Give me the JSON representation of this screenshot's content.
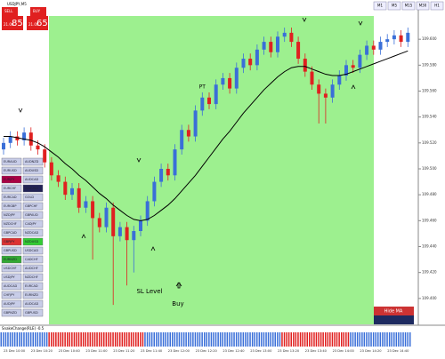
{
  "window_title": "USDJPY,M5",
  "trade_panel": {
    "sell": "SELL",
    "buy": "BUY",
    "sell_small": "21.00",
    "sell_big": "85",
    "buy_small": "21.00",
    "buy_big": "65"
  },
  "timeframes": [
    "M1",
    "M5",
    "M15",
    "M30",
    "H1"
  ],
  "symbols_left": [
    "EURAUD",
    "EURUSD",
    "EURJPY",
    "EURCHF",
    "EURCAD",
    "EURGBP",
    "NZDJPY",
    "NZDCHF",
    "GBPCAD",
    "GBPJPY",
    "GBPUSD",
    "EURNZD",
    "USDCHF",
    "USDJPY",
    "AUDCAD",
    "CHFJPY",
    "AUDJPY",
    "GBPNZD"
  ],
  "symbols_right": [
    "AUDNZD",
    "AUDUSD",
    "AUDCAD",
    "XAUUSD",
    "GOLD",
    "GBPCHF",
    "GBPAUD",
    "CADJPY",
    "NZDCAD",
    "NZDUSD",
    "USDCAD",
    "CADCHF",
    "AUDCHF",
    "NZDCHF",
    "EURCAD",
    "EURNZD",
    "AUDCAD",
    "GBPUSD"
  ],
  "info_panel": {
    "button": "Hide MA"
  },
  "chart_data": {
    "type": "candlestick",
    "up_color": "#3a6fd8",
    "down_color": "#e02020",
    "ma_color": "#000000",
    "annotations": {
      "pt": "PT",
      "sl": "SL Level",
      "buy": "Buy"
    },
    "open": [
      109.515,
      109.52,
      109.525,
      109.522,
      109.528,
      109.518,
      109.515,
      109.505,
      109.495,
      109.49,
      109.48,
      109.485,
      109.47,
      109.475,
      109.462,
      109.455,
      109.47,
      109.448,
      109.455,
      109.445,
      109.452,
      109.46,
      109.475,
      109.49,
      109.5,
      109.495,
      109.515,
      109.53,
      109.525,
      109.545,
      109.555,
      109.55,
      109.565,
      109.57,
      109.562,
      109.578,
      109.585,
      109.58,
      109.592,
      109.598,
      109.59,
      109.602,
      109.605,
      109.598,
      109.585,
      109.575,
      109.565,
      109.558,
      109.555,
      109.565,
      109.572,
      109.58,
      109.578,
      109.588,
      109.595,
      109.592,
      109.598,
      109.6,
      109.603,
      109.598
    ],
    "high": [
      109.524,
      109.529,
      109.529,
      109.532,
      109.532,
      109.522,
      109.519,
      109.509,
      109.499,
      109.494,
      109.489,
      109.489,
      109.479,
      109.479,
      109.466,
      109.474,
      109.474,
      109.459,
      109.459,
      109.456,
      109.464,
      109.479,
      109.494,
      109.504,
      109.504,
      109.519,
      109.534,
      109.534,
      109.549,
      109.559,
      109.559,
      109.569,
      109.574,
      109.574,
      109.582,
      109.589,
      109.589,
      109.596,
      109.602,
      109.602,
      109.606,
      109.609,
      109.609,
      109.602,
      109.589,
      109.579,
      109.569,
      109.562,
      109.569,
      109.576,
      109.584,
      109.584,
      109.592,
      109.599,
      109.599,
      109.602,
      109.604,
      109.607,
      109.607,
      109.609
    ],
    "low": [
      109.511,
      109.516,
      109.518,
      109.518,
      109.514,
      109.511,
      109.501,
      109.491,
      109.486,
      109.476,
      109.476,
      109.466,
      109.466,
      109.43,
      109.451,
      109.451,
      109.395,
      109.444,
      109.41,
      109.42,
      109.448,
      109.456,
      109.471,
      109.486,
      109.491,
      109.491,
      109.511,
      109.521,
      109.521,
      109.541,
      109.546,
      109.546,
      109.561,
      109.558,
      109.558,
      109.574,
      109.576,
      109.576,
      109.588,
      109.586,
      109.586,
      109.598,
      109.594,
      109.581,
      109.571,
      109.561,
      109.535,
      109.535,
      109.551,
      109.561,
      109.568,
      109.574,
      109.574,
      109.584,
      109.588,
      109.588,
      109.594,
      109.596,
      109.594,
      109.594
    ],
    "close": [
      109.52,
      109.525,
      109.522,
      109.528,
      109.518,
      109.515,
      109.505,
      109.495,
      109.49,
      109.48,
      109.485,
      109.47,
      109.475,
      109.462,
      109.455,
      109.47,
      109.448,
      109.455,
      109.445,
      109.452,
      109.46,
      109.475,
      109.49,
      109.5,
      109.495,
      109.515,
      109.53,
      109.525,
      109.545,
      109.555,
      109.55,
      109.565,
      109.57,
      109.562,
      109.578,
      109.585,
      109.58,
      109.592,
      109.598,
      109.59,
      109.602,
      109.605,
      109.598,
      109.585,
      109.575,
      109.565,
      109.558,
      109.555,
      109.565,
      109.572,
      109.58,
      109.578,
      109.588,
      109.595,
      109.592,
      109.598,
      109.6,
      109.603,
      109.598,
      109.605
    ],
    "ma": [
      109.525,
      109.525,
      109.524,
      109.523,
      109.522,
      109.52,
      109.517,
      109.513,
      109.509,
      109.504,
      109.5,
      109.495,
      109.491,
      109.486,
      109.481,
      109.477,
      109.472,
      109.468,
      109.464,
      109.461,
      109.46,
      109.461,
      109.464,
      109.468,
      109.472,
      109.477,
      109.483,
      109.489,
      109.495,
      109.502,
      109.509,
      109.516,
      109.523,
      109.529,
      109.536,
      109.543,
      109.549,
      109.555,
      109.561,
      109.566,
      109.571,
      109.575,
      109.578,
      109.579,
      109.579,
      109.577,
      109.575,
      109.573,
      109.572,
      109.572,
      109.573,
      109.575,
      109.577,
      109.579,
      109.581,
      109.583,
      109.585,
      109.587,
      109.589,
      109.591
    ],
    "categories": [
      "23 Dec 10:00",
      null,
      null,
      null,
      "23 Dec 10:20",
      null,
      null,
      null,
      "23 Dec 10:40",
      null,
      null,
      null,
      "23 Dec 11:00",
      null,
      null,
      null,
      "23 Dec 11:20",
      null,
      null,
      null,
      "23 Dec 11:40",
      null,
      null,
      null,
      "23 Dec 12:00",
      null,
      null,
      null,
      "23 Dec 12:20",
      null,
      null,
      null,
      "23 Dec 12:40",
      null,
      null,
      null,
      "23 Dec 13:00",
      null,
      null,
      null,
      "23 Dec 13:20",
      null,
      null,
      null,
      "23 Dec 13:40",
      null,
      null,
      null,
      "23 Dec 14:00",
      null,
      null,
      null,
      "23 Dec 14:20",
      null,
      null,
      null,
      "23 Dec 14:40",
      null,
      null,
      null
    ],
    "ylim": [
      109.38,
      109.62
    ],
    "yticks": [
      {
        "value": 109.4,
        "label": "109.400"
      },
      {
        "value": 109.42,
        "label": "109.420"
      },
      {
        "value": 109.44,
        "label": "109.440"
      },
      {
        "value": 109.46,
        "label": "109.460"
      },
      {
        "value": 109.48,
        "label": "109.480"
      },
      {
        "value": 109.5,
        "label": "109.500"
      },
      {
        "value": 109.52,
        "label": "109.520"
      },
      {
        "value": 109.54,
        "label": "109.540"
      },
      {
        "value": 109.56,
        "label": "109.560"
      },
      {
        "value": 109.58,
        "label": "109.580"
      },
      {
        "value": 109.6,
        "label": "109.600"
      }
    ],
    "indicator": {
      "name": "SnakeChange(RLE) -0.5",
      "up_color": "#3a6fd8",
      "down_color": "#e02020",
      "values": [
        1,
        1,
        1,
        1,
        1,
        1,
        1,
        -1,
        -1,
        -1,
        -1,
        -1,
        -1,
        -1,
        -1,
        -1,
        -1,
        -1,
        -1,
        -1,
        -1,
        1,
        1,
        1,
        1,
        1,
        1,
        1,
        1,
        1,
        1,
        1,
        1,
        1,
        1,
        1,
        1,
        1,
        1,
        1,
        1,
        -1,
        -1,
        -1,
        -1,
        -1,
        -1,
        -1,
        -1,
        -1,
        -1,
        1,
        1,
        1,
        1,
        1,
        1,
        1,
        1,
        1
      ]
    }
  }
}
